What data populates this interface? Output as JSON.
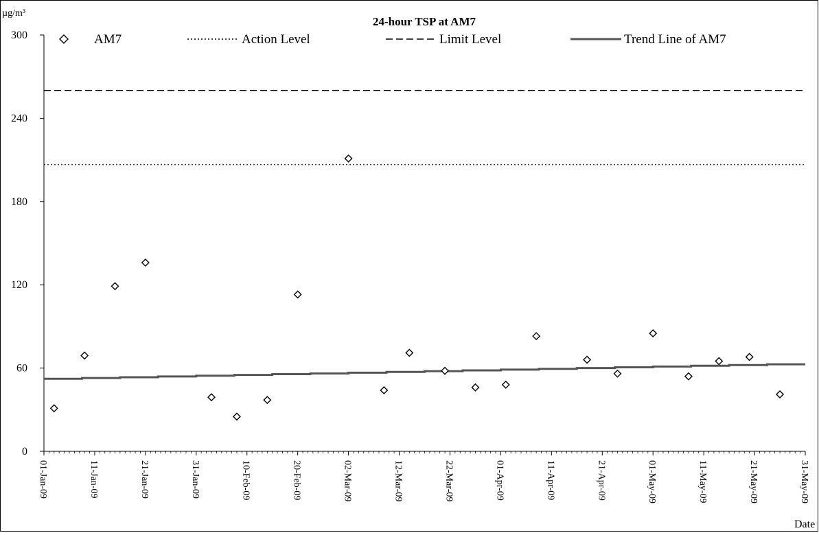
{
  "chart_data": {
    "type": "scatter",
    "title": "24-hour TSP at AM7",
    "ylabel": "µg/m³",
    "xlabel": "Date",
    "ylim": [
      0,
      300
    ],
    "yticks": [
      0,
      60,
      120,
      180,
      240,
      300
    ],
    "xlim": [
      "2009-01-01",
      "2009-05-31"
    ],
    "xtick_labels": [
      "01-Jan-09",
      "11-Jan-09",
      "21-Jan-09",
      "31-Jan-09",
      "10-Feb-09",
      "20-Feb-09",
      "02-Mar-09",
      "12-Mar-09",
      "22-Mar-09",
      "01-Apr-09",
      "11-Apr-09",
      "21-Apr-09",
      "01-May-09",
      "11-May-09",
      "21-May-09",
      "31-May-09"
    ],
    "legend": [
      "AM7",
      "Action Level",
      "Limit Level",
      "Trend Line of AM7"
    ],
    "legend_position": "top",
    "grid": false,
    "series": [
      {
        "name": "AM7",
        "marker": "diamond-open",
        "points": [
          {
            "x": "2009-01-03",
            "y": 31
          },
          {
            "x": "2009-01-09",
            "y": 69
          },
          {
            "x": "2009-01-15",
            "y": 119
          },
          {
            "x": "2009-01-21",
            "y": 136
          },
          {
            "x": "2009-02-03",
            "y": 39
          },
          {
            "x": "2009-02-08",
            "y": 25
          },
          {
            "x": "2009-02-14",
            "y": 37
          },
          {
            "x": "2009-02-20",
            "y": 113
          },
          {
            "x": "2009-03-02",
            "y": 211
          },
          {
            "x": "2009-03-09",
            "y": 44
          },
          {
            "x": "2009-03-14",
            "y": 71
          },
          {
            "x": "2009-03-21",
            "y": 58
          },
          {
            "x": "2009-03-27",
            "y": 46
          },
          {
            "x": "2009-04-02",
            "y": 48
          },
          {
            "x": "2009-04-08",
            "y": 83
          },
          {
            "x": "2009-04-18",
            "y": 66
          },
          {
            "x": "2009-04-24",
            "y": 56
          },
          {
            "x": "2009-05-01",
            "y": 85
          },
          {
            "x": "2009-05-08",
            "y": 54
          },
          {
            "x": "2009-05-14",
            "y": 65
          },
          {
            "x": "2009-05-20",
            "y": 68
          },
          {
            "x": "2009-05-26",
            "y": 41
          }
        ]
      },
      {
        "name": "Action Level",
        "style": "dotted",
        "y": 206.6
      },
      {
        "name": "Limit Level",
        "style": "dashed",
        "y": 260
      },
      {
        "name": "Trend Line of AM7",
        "style": "solid",
        "x": [
          "2009-01-01",
          "2009-05-31"
        ],
        "y": [
          52,
          63
        ]
      }
    ]
  }
}
